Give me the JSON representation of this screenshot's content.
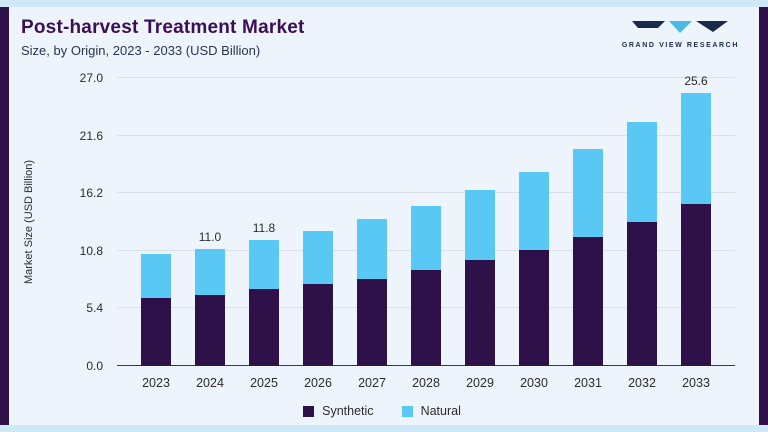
{
  "header": {
    "title": "Post-harvest Treatment Market",
    "subtitle": "Size, by Origin, 2023 - 2033 (USD Billion)",
    "logo_text": "GRAND VIEW RESEARCH"
  },
  "chart_data": {
    "type": "bar",
    "stacked": true,
    "title": "Post-harvest Treatment Market",
    "subtitle": "Size, by Origin, 2023 - 2033 (USD Billion)",
    "ylabel": "Market Size (USD Billion)",
    "ylim": [
      0,
      27
    ],
    "yticks": [
      0.0,
      5.4,
      10.8,
      16.2,
      21.6,
      27.0
    ],
    "grid": true,
    "legend_position": "bottom",
    "categories": [
      "2023",
      "2024",
      "2025",
      "2026",
      "2027",
      "2028",
      "2029",
      "2030",
      "2031",
      "2032",
      "2033"
    ],
    "series": [
      {
        "name": "Synthetic",
        "color": "#2d1148",
        "values": [
          6.4,
          6.7,
          7.2,
          7.7,
          8.2,
          9.0,
          9.9,
          10.9,
          12.1,
          13.5,
          15.2
        ]
      },
      {
        "name": "Natural",
        "color": "#5ac8f5",
        "values": [
          4.1,
          4.3,
          4.6,
          5.0,
          5.6,
          6.0,
          6.6,
          7.3,
          8.2,
          9.4,
          10.4
        ]
      }
    ],
    "totals": [
      10.5,
      11.0,
      11.8,
      12.7,
      13.8,
      15.0,
      16.5,
      18.2,
      20.3,
      22.9,
      25.6
    ],
    "bar_labels": [
      "",
      "11.0",
      "11.8",
      "",
      "",
      "",
      "",
      "",
      "",
      "",
      "25.6"
    ],
    "colors": {
      "synthetic": "#2d1148",
      "natural": "#5ac8f5"
    }
  }
}
